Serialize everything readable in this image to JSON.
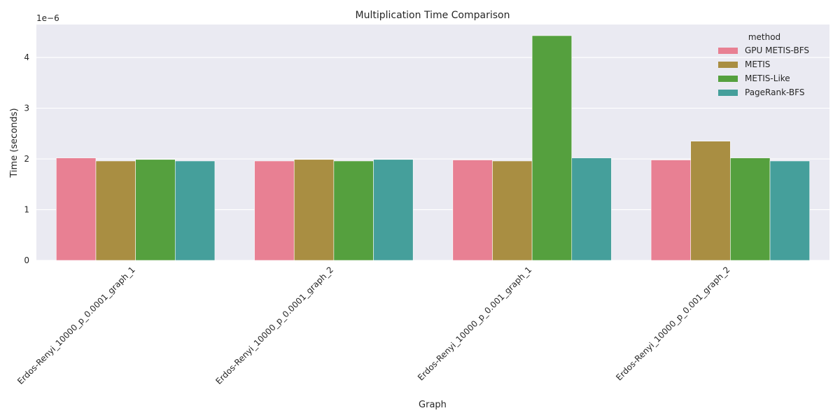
{
  "chart_data": {
    "type": "bar",
    "title": "Multiplication Time Comparison",
    "xlabel": "Graph",
    "ylabel": "Time (seconds)",
    "scale_label": "1e−6",
    "categories": [
      "Erdos-Renyi_10000_p_0.0001_graph_1",
      "Erdos-Renyi_10000_p_0.0001_graph_2",
      "Erdos-Renyi_10000_p_0.001_graph_1",
      "Erdos-Renyi_10000_p_0.001_graph_2"
    ],
    "series": [
      {
        "name": "GPU METIS-BFS",
        "color": "#e88093",
        "values": [
          2.02,
          1.96,
          1.98,
          1.98
        ]
      },
      {
        "name": "METIS",
        "color": "#a98e42",
        "values": [
          1.96,
          1.99,
          1.96,
          2.35
        ]
      },
      {
        "name": "METIS-Like",
        "color": "#55a03e",
        "values": [
          1.99,
          1.96,
          4.43,
          2.02
        ]
      },
      {
        "name": "PageRank-BFS",
        "color": "#459f9b",
        "values": [
          1.96,
          1.99,
          2.02,
          1.96
        ]
      }
    ],
    "legend_title": "method",
    "legend_position": "top-right",
    "yticks": [
      0,
      1,
      2,
      3,
      4
    ],
    "ylim": [
      0,
      4.65
    ],
    "grid": true
  }
}
